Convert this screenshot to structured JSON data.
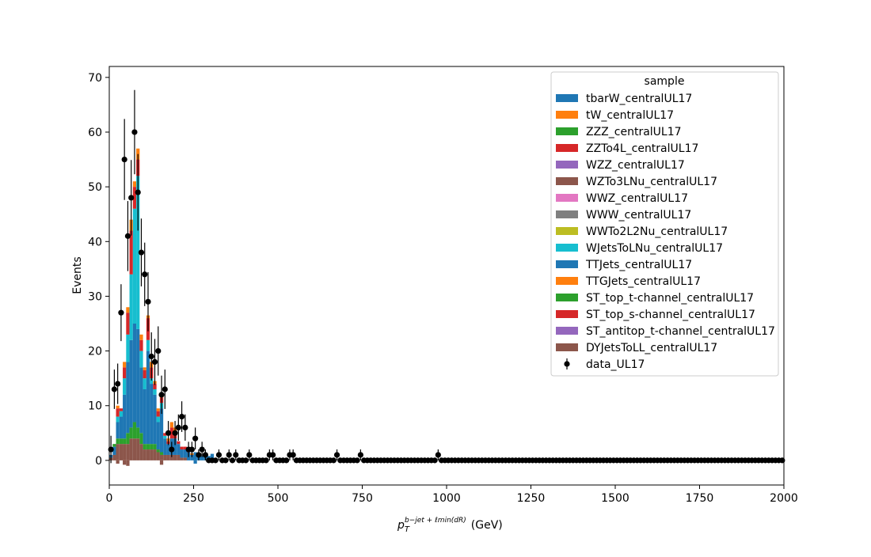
{
  "chart_data": {
    "type": "bar",
    "subtype": "stacked-histogram-with-data-points",
    "xlabel_main": "p",
    "xlabel_sub": "T",
    "xlabel_sup": "b−jet + ℓmin(dR)",
    "xlabel_unit": "(GeV)",
    "ylabel": "Events",
    "xlim": [
      0,
      2000
    ],
    "ylim": [
      -4.5,
      72
    ],
    "x_ticks": [
      0,
      250,
      500,
      750,
      1000,
      1250,
      1500,
      1750,
      2000
    ],
    "y_ticks": [
      0,
      10,
      20,
      30,
      40,
      50,
      60,
      70
    ],
    "bin_width": 10,
    "grid": false,
    "legend": {
      "title": "sample",
      "position": "top-right",
      "entries": [
        {
          "name": "tbarW_centralUL17",
          "color": "#1f77b4",
          "kind": "patch"
        },
        {
          "name": "tW_centralUL17",
          "color": "#ff7f0e",
          "kind": "patch"
        },
        {
          "name": "ZZZ_centralUL17",
          "color": "#2ca02c",
          "kind": "patch"
        },
        {
          "name": "ZZTo4L_centralUL17",
          "color": "#d62728",
          "kind": "patch"
        },
        {
          "name": "WZZ_centralUL17",
          "color": "#9467bd",
          "kind": "patch"
        },
        {
          "name": "WZTo3LNu_centralUL17",
          "color": "#8c564b",
          "kind": "patch"
        },
        {
          "name": "WWZ_centralUL17",
          "color": "#e377c2",
          "kind": "patch"
        },
        {
          "name": "WWW_centralUL17",
          "color": "#7f7f7f",
          "kind": "patch"
        },
        {
          "name": "WWTo2L2Nu_centralUL17",
          "color": "#bcbd22",
          "kind": "patch"
        },
        {
          "name": "WJetsToLNu_centralUL17",
          "color": "#17becf",
          "kind": "patch"
        },
        {
          "name": "TTJets_centralUL17",
          "color": "#1f77b4",
          "kind": "patch"
        },
        {
          "name": "TTGJets_centralUL17",
          "color": "#ff7f0e",
          "kind": "patch"
        },
        {
          "name": "ST_top_t-channel_centralUL17",
          "color": "#2ca02c",
          "kind": "patch"
        },
        {
          "name": "ST_top_s-channel_centralUL17",
          "color": "#d62728",
          "kind": "patch"
        },
        {
          "name": "ST_antitop_t-channel_centralUL17",
          "color": "#9467bd",
          "kind": "patch"
        },
        {
          "name": "DYJetsToLL_centralUL17",
          "color": "#8c564b",
          "kind": "patch"
        },
        {
          "name": "data_UL17",
          "color": "#000000",
          "kind": "errorbar"
        }
      ]
    },
    "stack_bins": [
      {
        "x": 0,
        "segments": [
          [
            "#8c564b",
            0.5
          ],
          [
            "#1f77b4",
            0.5
          ]
        ]
      },
      {
        "x": 10,
        "segments": [
          [
            "#8c564b",
            1.0
          ],
          [
            "#1f77b4",
            1.5
          ],
          [
            "#2ca02c",
            0.5
          ]
        ]
      },
      {
        "x": 20,
        "segments": [
          [
            "#8c564b",
            3.0
          ],
          [
            "#2ca02c",
            1.0
          ],
          [
            "#1f77b4",
            3.0
          ],
          [
            "#17becf",
            1.0
          ],
          [
            "#d62728",
            1.5
          ],
          [
            "#ff7f0e",
            0.5
          ]
        ]
      },
      {
        "x": 30,
        "segments": [
          [
            "#8c564b",
            3.0
          ],
          [
            "#2ca02c",
            1.0
          ],
          [
            "#1f77b4",
            4.0
          ],
          [
            "#17becf",
            1.0
          ],
          [
            "#d62728",
            0.5
          ]
        ]
      },
      {
        "x": 40,
        "segments": [
          [
            "#8c564b",
            3.0
          ],
          [
            "#2ca02c",
            1.0
          ],
          [
            "#1f77b4",
            8.0
          ],
          [
            "#17becf",
            3.0
          ],
          [
            "#d62728",
            2.0
          ],
          [
            "#ff7f0e",
            1.0
          ]
        ]
      },
      {
        "x": 50,
        "segments": [
          [
            "#8c564b",
            3.0
          ],
          [
            "#2ca02c",
            2.0
          ],
          [
            "#1f77b4",
            13.0
          ],
          [
            "#17becf",
            5.0
          ],
          [
            "#d62728",
            4.0
          ],
          [
            "#ff7f0e",
            1.0
          ]
        ]
      },
      {
        "x": 60,
        "segments": [
          [
            "#8c564b",
            4.0
          ],
          [
            "#2ca02c",
            2.0
          ],
          [
            "#1f77b4",
            16.0
          ],
          [
            "#17becf",
            12.0
          ],
          [
            "#d62728",
            8.0
          ],
          [
            "#ff7f0e",
            2.0
          ]
        ]
      },
      {
        "x": 70,
        "segments": [
          [
            "#8c564b",
            4.0
          ],
          [
            "#2ca02c",
            3.0
          ],
          [
            "#1f77b4",
            18.0
          ],
          [
            "#17becf",
            21.0
          ],
          [
            "#d62728",
            4.0
          ],
          [
            "#ff7f0e",
            1.0
          ]
        ]
      },
      {
        "x": 80,
        "segments": [
          [
            "#8c564b",
            4.0
          ],
          [
            "#2ca02c",
            2.0
          ],
          [
            "#1f77b4",
            18.0
          ],
          [
            "#17becf",
            28.0
          ],
          [
            "#d62728",
            3.0
          ],
          [
            "#ff7f0e",
            2.0
          ]
        ]
      },
      {
        "x": 90,
        "segments": [
          [
            "#8c564b",
            3.0
          ],
          [
            "#2ca02c",
            2.0
          ],
          [
            "#1f77b4",
            12.0
          ],
          [
            "#17becf",
            3.0
          ],
          [
            "#d62728",
            2.0
          ],
          [
            "#ff7f0e",
            1.0
          ]
        ]
      },
      {
        "x": 100,
        "segments": [
          [
            "#8c564b",
            2.0
          ],
          [
            "#2ca02c",
            1.0
          ],
          [
            "#1f77b4",
            10.0
          ],
          [
            "#17becf",
            2.0
          ],
          [
            "#d62728",
            1.5
          ],
          [
            "#ff7f0e",
            0.5
          ]
        ]
      },
      {
        "x": 110,
        "segments": [
          [
            "#8c564b",
            2.0
          ],
          [
            "#2ca02c",
            1.0
          ],
          [
            "#1f77b4",
            17.0
          ],
          [
            "#17becf",
            2.0
          ],
          [
            "#d62728",
            4.0
          ],
          [
            "#ff7f0e",
            0.5
          ]
        ]
      },
      {
        "x": 120,
        "segments": [
          [
            "#8c564b",
            2.0
          ],
          [
            "#2ca02c",
            1.0
          ],
          [
            "#1f77b4",
            11.0
          ],
          [
            "#17becf",
            1.0
          ],
          [
            "#d62728",
            2.0
          ],
          [
            "#ff7f0e",
            1.0
          ]
        ]
      },
      {
        "x": 130,
        "segments": [
          [
            "#8c564b",
            2.0
          ],
          [
            "#2ca02c",
            1.0
          ],
          [
            "#1f77b4",
            9.0
          ],
          [
            "#17becf",
            1.0
          ],
          [
            "#d62728",
            1.0
          ],
          [
            "#ff7f0e",
            0.5
          ]
        ]
      },
      {
        "x": 140,
        "segments": [
          [
            "#8c564b",
            1.5
          ],
          [
            "#2ca02c",
            0.5
          ],
          [
            "#1f77b4",
            5.0
          ],
          [
            "#17becf",
            1.0
          ],
          [
            "#d62728",
            1.0
          ],
          [
            "#ff7f0e",
            0.5
          ]
        ]
      },
      {
        "x": 150,
        "segments": [
          [
            "#8c564b",
            1.0
          ],
          [
            "#2ca02c",
            0.5
          ],
          [
            "#1f77b4",
            8.0
          ],
          [
            "#17becf",
            1.0
          ],
          [
            "#d62728",
            1.0
          ],
          [
            "#ff7f0e",
            0.5
          ]
        ]
      },
      {
        "x": 160,
        "segments": [
          [
            "#8c564b",
            1.0
          ],
          [
            "#1f77b4",
            3.0
          ],
          [
            "#17becf",
            0.5
          ],
          [
            "#d62728",
            0.5
          ]
        ]
      },
      {
        "x": 170,
        "segments": [
          [
            "#8c564b",
            1.0
          ],
          [
            "#1f77b4",
            2.0
          ],
          [
            "#d62728",
            0.5
          ],
          [
            "#ff7f0e",
            0.5
          ]
        ]
      },
      {
        "x": 180,
        "segments": [
          [
            "#8c564b",
            1.0
          ],
          [
            "#1f77b4",
            3.0
          ],
          [
            "#d62728",
            2.0
          ],
          [
            "#ff7f0e",
            1.0
          ]
        ]
      },
      {
        "x": 190,
        "segments": [
          [
            "#8c564b",
            1.0
          ],
          [
            "#1f77b4",
            3.0
          ],
          [
            "#d62728",
            1.0
          ],
          [
            "#ff7f0e",
            1.0
          ]
        ]
      },
      {
        "x": 200,
        "segments": [
          [
            "#8c564b",
            1.0
          ],
          [
            "#1f77b4",
            2.0
          ],
          [
            "#d62728",
            0.5
          ]
        ]
      },
      {
        "x": 210,
        "segments": [
          [
            "#8c564b",
            0.5
          ],
          [
            "#1f77b4",
            1.5
          ],
          [
            "#d62728",
            0.5
          ]
        ]
      },
      {
        "x": 220,
        "segments": [
          [
            "#8c564b",
            0.5
          ],
          [
            "#1f77b4",
            1.5
          ],
          [
            "#d62728",
            0.5
          ]
        ]
      },
      {
        "x": 230,
        "segments": [
          [
            "#1f77b4",
            1.5
          ],
          [
            "#d62728",
            0.5
          ]
        ]
      },
      {
        "x": 240,
        "segments": [
          [
            "#1f77b4",
            1.0
          ],
          [
            "#ff7f0e",
            0.3
          ]
        ]
      },
      {
        "x": 250,
        "segments": [
          [
            "#1f77b4",
            1.5
          ]
        ]
      },
      {
        "x": 260,
        "segments": [
          [
            "#1f77b4",
            1.0
          ],
          [
            "#d62728",
            0.3
          ]
        ]
      },
      {
        "x": 270,
        "segments": [
          [
            "#1f77b4",
            0.8
          ]
        ]
      },
      {
        "x": 280,
        "segments": [
          [
            "#1f77b4",
            1.0
          ]
        ]
      },
      {
        "x": 290,
        "segments": [
          [
            "#1f77b4",
            0.8
          ]
        ]
      },
      {
        "x": 300,
        "segments": [
          [
            "#1f77b4",
            1.2
          ]
        ]
      },
      {
        "x": 310,
        "segments": [
          [
            "#1f77b4",
            0.4
          ]
        ]
      }
    ],
    "negative_bins": [
      {
        "x": 20,
        "segments": [
          [
            "#8c564b",
            -0.6
          ]
        ]
      },
      {
        "x": 40,
        "segments": [
          [
            "#8c564b",
            -0.8
          ]
        ]
      },
      {
        "x": 50,
        "segments": [
          [
            "#8c564b",
            -1.0
          ]
        ]
      },
      {
        "x": 150,
        "segments": [
          [
            "#8c564b",
            -0.8
          ]
        ]
      },
      {
        "x": 250,
        "segments": [
          [
            "#1f77b4",
            -0.6
          ]
        ]
      }
    ],
    "data_points": [
      {
        "x": 5,
        "y": 2,
        "err": 2.5
      },
      {
        "x": 15,
        "y": 13,
        "err": 3.6
      },
      {
        "x": 25,
        "y": 14,
        "err": 3.7
      },
      {
        "x": 35,
        "y": 27,
        "err": 5.2
      },
      {
        "x": 45,
        "y": 55,
        "err": 7.4
      },
      {
        "x": 55,
        "y": 41,
        "err": 6.4
      },
      {
        "x": 65,
        "y": 48,
        "err": 6.9
      },
      {
        "x": 75,
        "y": 60,
        "err": 7.7
      },
      {
        "x": 85,
        "y": 49,
        "err": 7.0
      },
      {
        "x": 95,
        "y": 38,
        "err": 6.2
      },
      {
        "x": 105,
        "y": 34,
        "err": 5.8
      },
      {
        "x": 115,
        "y": 29,
        "err": 5.4
      },
      {
        "x": 125,
        "y": 19,
        "err": 4.4
      },
      {
        "x": 135,
        "y": 18,
        "err": 4.2
      },
      {
        "x": 145,
        "y": 20,
        "err": 4.5
      },
      {
        "x": 155,
        "y": 12,
        "err": 3.5
      },
      {
        "x": 165,
        "y": 13,
        "err": 3.6
      },
      {
        "x": 175,
        "y": 5,
        "err": 2.2
      },
      {
        "x": 185,
        "y": 2,
        "err": 1.4
      },
      {
        "x": 195,
        "y": 5,
        "err": 2.2
      },
      {
        "x": 205,
        "y": 6,
        "err": 2.4
      },
      {
        "x": 215,
        "y": 8,
        "err": 2.8
      },
      {
        "x": 225,
        "y": 6,
        "err": 2.4
      },
      {
        "x": 235,
        "y": 2,
        "err": 1.4
      },
      {
        "x": 245,
        "y": 2,
        "err": 1.4
      },
      {
        "x": 255,
        "y": 4,
        "err": 2.0
      },
      {
        "x": 265,
        "y": 1,
        "err": 1.0
      },
      {
        "x": 275,
        "y": 2,
        "err": 1.4
      },
      {
        "x": 285,
        "y": 1,
        "err": 1.0
      },
      {
        "x": 325,
        "y": 1,
        "err": 1.0
      },
      {
        "x": 355,
        "y": 1,
        "err": 1.0
      },
      {
        "x": 375,
        "y": 1,
        "err": 1.0
      },
      {
        "x": 415,
        "y": 1,
        "err": 1.0
      },
      {
        "x": 475,
        "y": 1,
        "err": 1.0
      },
      {
        "x": 485,
        "y": 1,
        "err": 1.0
      },
      {
        "x": 535,
        "y": 1,
        "err": 1.0
      },
      {
        "x": 545,
        "y": 1,
        "err": 1.0
      },
      {
        "x": 675,
        "y": 1,
        "err": 1.0
      },
      {
        "x": 745,
        "y": 1,
        "err": 1.0
      },
      {
        "x": 975,
        "y": 1,
        "err": 1.0
      }
    ]
  }
}
